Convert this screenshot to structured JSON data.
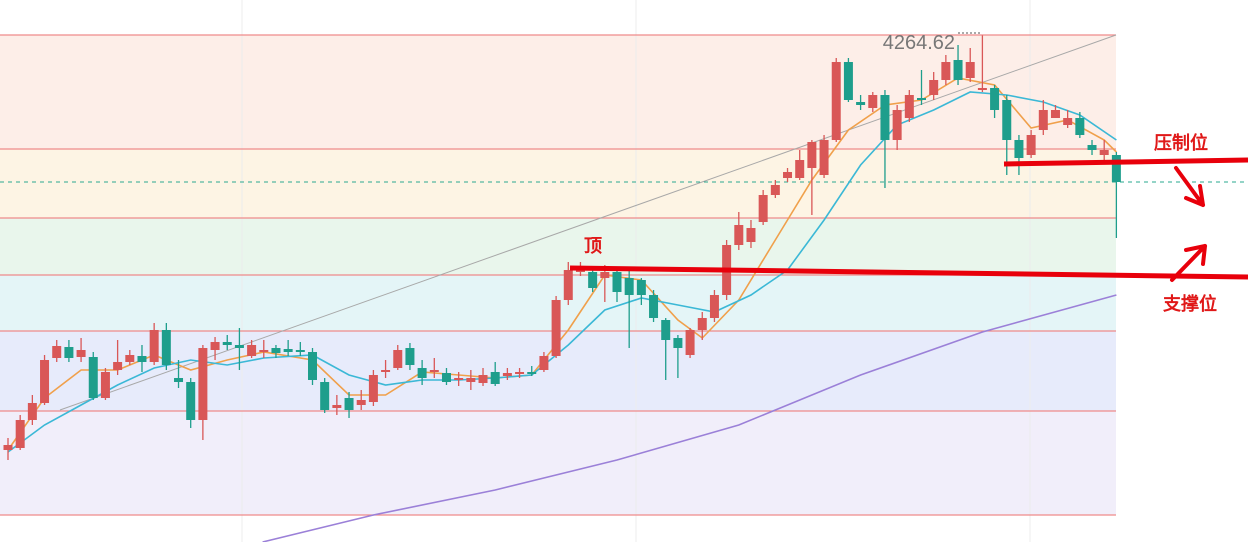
{
  "chart_data": {
    "type": "candlestick",
    "ylim": [
      3758,
      4300
    ],
    "up_color": "#d95757",
    "down_color": "#1e9e8c",
    "open": [
      3850,
      3852,
      3880,
      3897,
      3942,
      3953,
      3943,
      3943,
      3902,
      3930,
      3938,
      3944,
      3938,
      3970,
      3922,
      3918,
      3880,
      3950,
      3958,
      3955,
      3944,
      3948,
      3952,
      3951,
      3950,
      3948,
      3918,
      3892,
      3902,
      3895,
      3898,
      3928,
      3932,
      3952,
      3932,
      3928,
      3927,
      3920,
      3918,
      3917,
      3928,
      3924,
      3926,
      3928,
      3930,
      3944,
      4000,
      4028,
      4028,
      4022,
      4028,
      4022,
      4020,
      4005,
      3980,
      3962,
      3945,
      3970,
      3982,
      4005,
      4055,
      4058,
      4078,
      4105,
      4122,
      4122,
      4132,
      4125,
      4160,
      4238,
      4198,
      4192,
      4205,
      4160,
      4182,
      4202,
      4205,
      4220,
      4240,
      4222,
      4210,
      4212,
      4200,
      4160,
      4145,
      4170,
      4182,
      4175,
      4182,
      4155,
      4145,
      4145
    ],
    "high": [
      3862,
      3885,
      3905,
      3945,
      3960,
      3960,
      3962,
      3948,
      3932,
      3960,
      3950,
      3955,
      3977,
      3977,
      3940,
      3922,
      3955,
      3963,
      3965,
      3972,
      3960,
      3960,
      3955,
      3960,
      3958,
      3952,
      3922,
      3905,
      3908,
      3910,
      3930,
      3940,
      3955,
      3957,
      3940,
      3942,
      3932,
      3928,
      3930,
      3932,
      3938,
      3932,
      3932,
      3934,
      3948,
      4004,
      4038,
      4038,
      4034,
      4035,
      4032,
      4030,
      4022,
      4010,
      3982,
      3965,
      3972,
      3988,
      4010,
      4060,
      4088,
      4080,
      4110,
      4120,
      4132,
      4150,
      4160,
      4165,
      4242,
      4242,
      4205,
      4208,
      4210,
      4195,
      4210,
      4230,
      4228,
      4245,
      4255,
      4252,
      4264.62,
      4215,
      4205,
      4165,
      4170,
      4200,
      4195,
      4190,
      4188,
      4160,
      4160,
      4148
    ],
    "low": [
      3840,
      3850,
      3875,
      3895,
      3938,
      3938,
      3938,
      3900,
      3900,
      3925,
      3935,
      3928,
      3935,
      3930,
      3912,
      3872,
      3860,
      3940,
      3950,
      3930,
      3942,
      3942,
      3942,
      3944,
      3944,
      3915,
      3887,
      3885,
      3882,
      3890,
      3894,
      3922,
      3930,
      3930,
      3915,
      3922,
      3915,
      3914,
      3910,
      3914,
      3914,
      3920,
      3922,
      3924,
      3928,
      3942,
      3995,
      4024,
      4008,
      3998,
      3998,
      3952,
      3995,
      3978,
      3920,
      3922,
      3942,
      3960,
      3978,
      4000,
      4050,
      4052,
      4075,
      4102,
      4118,
      4120,
      4085,
      4122,
      4158,
      4198,
      4190,
      4188,
      4112,
      4150,
      4178,
      4195,
      4200,
      4215,
      4215,
      4218,
      4208,
      4182,
      4125,
      4125,
      4142,
      4165,
      4182,
      4172,
      4162,
      4145,
      4140,
      4062
    ],
    "close": [
      3855,
      3880,
      3897,
      3940,
      3954,
      3942,
      3950,
      3902,
      3928,
      3938,
      3945,
      3938,
      3970,
      3935,
      3918,
      3880,
      3952,
      3958,
      3955,
      3952,
      3955,
      3950,
      3947,
      3948,
      3948,
      3920,
      3890,
      3895,
      3890,
      3900,
      3925,
      3930,
      3950,
      3935,
      3922,
      3930,
      3918,
      3922,
      3922,
      3925,
      3916,
      3927,
      3928,
      3926,
      3944,
      4000,
      4030,
      4034,
      4012,
      4028,
      4008,
      4005,
      4005,
      3982,
      3960,
      3952,
      3970,
      3982,
      4005,
      4055,
      4075,
      4072,
      4105,
      4115,
      4128,
      4140,
      4158,
      4160,
      4238,
      4200,
      4195,
      4205,
      4160,
      4190,
      4205,
      4200,
      4220,
      4238,
      4220,
      4238,
      4212,
      4190,
      4160,
      4142,
      4165,
      4190,
      4190,
      4182,
      4165,
      4150,
      4150,
      4118
    ],
    "series": [
      {
        "color": "#f0a04b",
        "x": [
          0,
          3,
          6,
          9,
          12,
          15,
          18,
          21,
          25,
          28,
          31,
          34,
          37,
          40,
          43,
          46,
          49,
          52,
          55,
          57,
          60,
          63,
          66,
          69,
          72,
          75,
          78,
          81,
          84,
          87,
          90,
          91
        ],
        "values": [
          3850,
          3902,
          3930,
          3930,
          3945,
          3930,
          3940,
          3948,
          3940,
          3905,
          3905,
          3928,
          3925,
          3922,
          3925,
          3970,
          4025,
          4020,
          3980,
          3962,
          4000,
          4060,
          4120,
          4170,
          4195,
          4200,
          4222,
          4215,
          4172,
          4180,
          4160,
          4148
        ]
      },
      {
        "color": "#3bb8d6",
        "x": [
          0,
          3,
          6,
          9,
          12,
          15,
          18,
          21,
          25,
          28,
          31,
          34,
          37,
          40,
          43,
          46,
          49,
          52,
          55,
          58,
          61,
          64,
          67,
          70,
          73,
          76,
          79,
          82,
          85,
          88,
          91
        ],
        "values": [
          3848,
          3875,
          3895,
          3915,
          3932,
          3940,
          3935,
          3942,
          3945,
          3925,
          3915,
          3920,
          3920,
          3922,
          3925,
          3955,
          3990,
          4002,
          3995,
          3988,
          4005,
          4030,
          4080,
          4135,
          4175,
          4190,
          4208,
          4205,
          4198,
          4185,
          4160
        ]
      },
      {
        "color": "#9b80d8",
        "x": [
          20.9,
          30,
          40,
          50,
          60,
          70,
          80,
          91
        ],
        "values": [
          3758,
          3785,
          3810,
          3840,
          3875,
          3925,
          3968,
          4005
        ]
      }
    ],
    "annotations": [
      "顶",
      "压制位",
      "支撑位"
    ]
  }
}
